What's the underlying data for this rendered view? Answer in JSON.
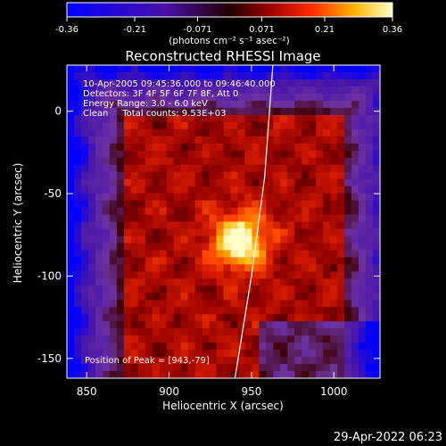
{
  "chart_data": {
    "type": "heatmap",
    "title": "Reconstructed RHESSI Image",
    "xlabel": "Heliocentric X (arcsec)",
    "ylabel": "Heliocentric Y (arcsec)",
    "xlim": [
      838,
      1028
    ],
    "ylim": [
      -162,
      28
    ],
    "x_ticks": [
      850,
      900,
      950,
      1000
    ],
    "y_ticks": [
      -150,
      -100,
      -50,
      0
    ],
    "annotations": [
      "10-Apr-2005 09:45:36.000 to 09:46:40.000",
      "Detectors: 3F 4F 5F 6F 7F 8F, Att 0",
      "Energy Range: 3.0 - 6.0 keV",
      "Clean     Total counts: 9.53E+03"
    ],
    "peak_label": "Position of Peak = [943,-79]",
    "peak": {
      "x": 943,
      "y": -79,
      "value": 0.36
    },
    "colorbar": {
      "min": -0.36,
      "max": 0.36,
      "ticks": [
        "-0.36",
        "-0.21",
        "-0.071",
        "0.071",
        "0.21",
        "0.36"
      ],
      "units": "(photons cm⁻² s⁻¹ asec⁻²)"
    },
    "limb": {
      "description_points": [
        [
          963,
          28
        ],
        [
          958,
          -40
        ],
        [
          950,
          -100
        ],
        [
          940,
          -162
        ]
      ]
    }
  },
  "footer": {
    "timestamp": "29-Apr-2022 06:23"
  }
}
